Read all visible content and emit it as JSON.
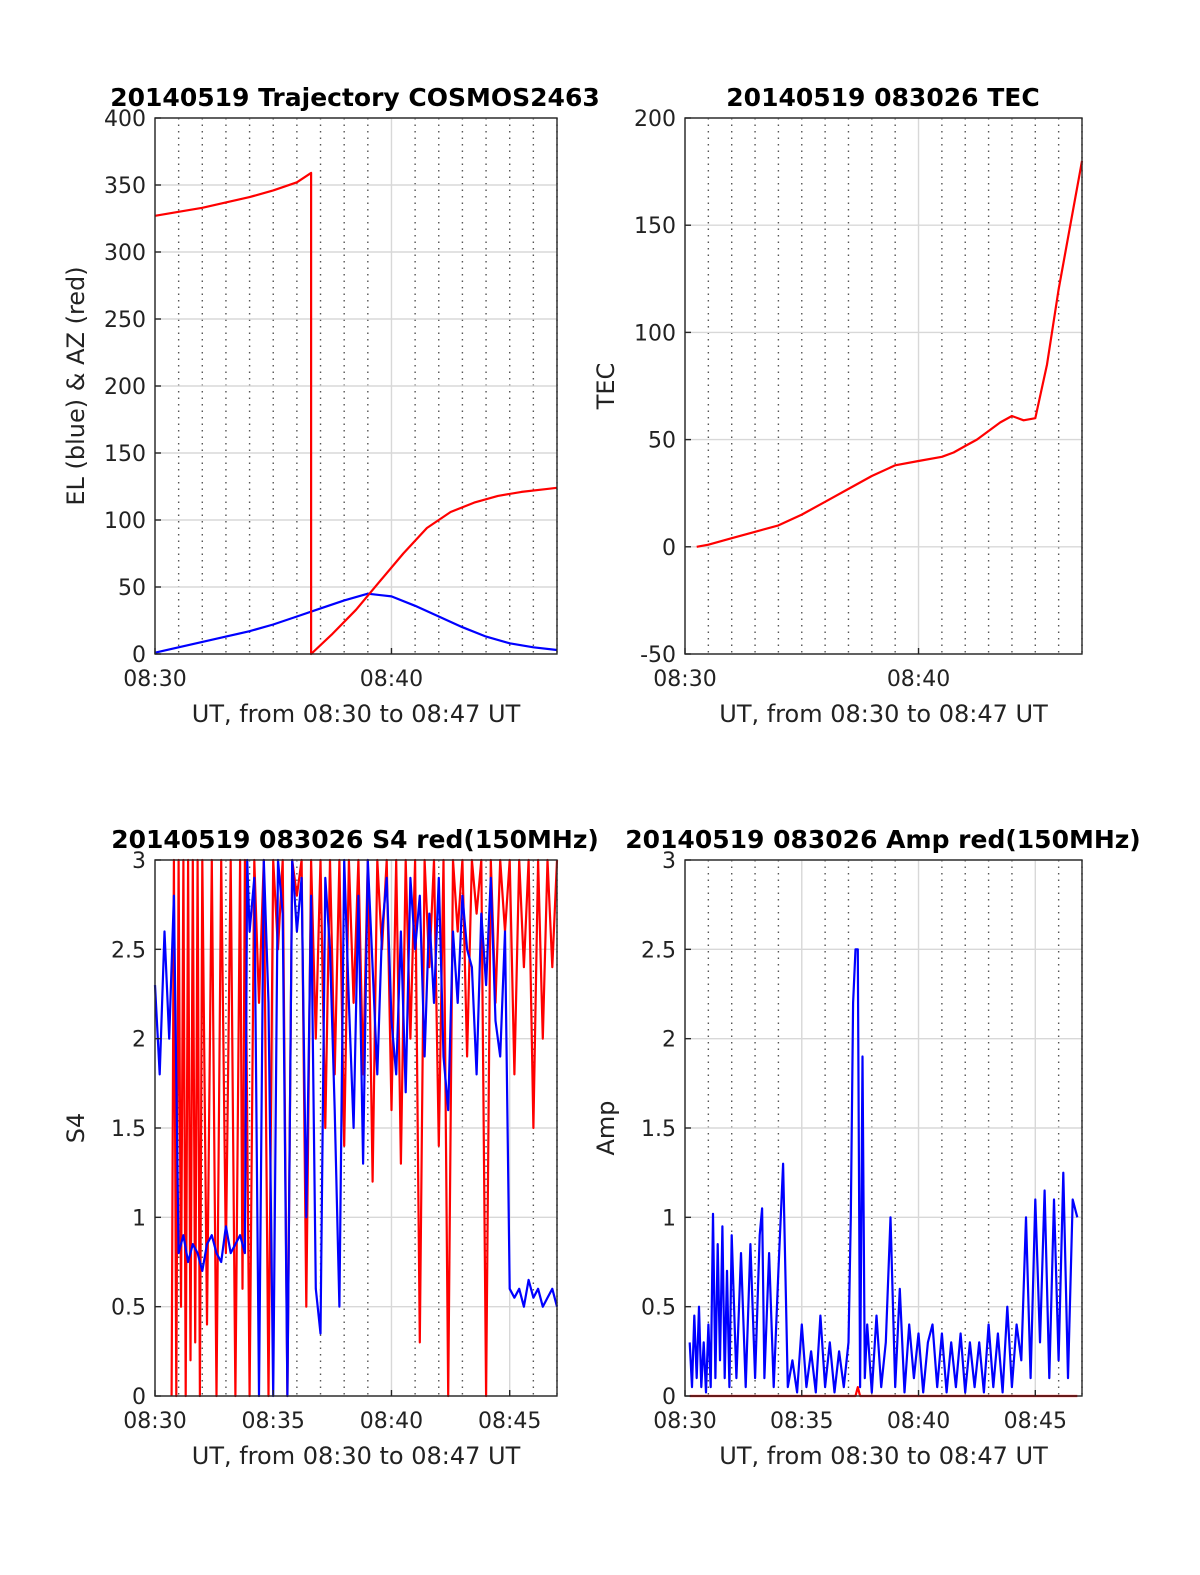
{
  "chart_data": [
    {
      "type": "line",
      "title": "20140519 Trajectory COSMOS2463",
      "xlabel": "UT, from 08:30 to 08:47 UT",
      "ylabel": "EL (blue) & AZ (red)",
      "xlim": [
        0,
        17
      ],
      "ylim": [
        0,
        400
      ],
      "xticks": [
        0,
        10
      ],
      "xtick_labels": [
        "08:30",
        "08:40"
      ],
      "yticks": [
        0,
        50,
        100,
        150,
        200,
        250,
        300,
        350,
        400
      ],
      "ytick_labels": [
        "0",
        "50",
        "100",
        "150",
        "200",
        "250",
        "300",
        "350",
        "400"
      ],
      "grid": true,
      "minor_grid_step": 1,
      "series": [
        {
          "color": "#0000ff",
          "x": [
            0,
            1,
            2,
            3,
            4,
            5,
            6,
            7,
            8,
            9,
            10,
            11,
            12,
            13,
            14,
            15,
            16,
            17
          ],
          "y": [
            1,
            5,
            9,
            13,
            17,
            22,
            28,
            34,
            40,
            45,
            43,
            36,
            28,
            20,
            13,
            8,
            5,
            3
          ]
        },
        {
          "color": "#ff0000",
          "x": [
            0,
            1,
            2,
            3,
            4,
            5,
            6,
            6.6,
            6.6,
            7.5,
            8.5,
            9.5,
            10.5,
            11.5,
            12.5,
            13.5,
            14.5,
            15.5,
            16.5,
            17
          ],
          "y": [
            327,
            330,
            333,
            337,
            341,
            346,
            352,
            359,
            0,
            15,
            33,
            54,
            75,
            94,
            106,
            113,
            118,
            121,
            123,
            124
          ]
        }
      ]
    },
    {
      "type": "line",
      "title": "20140519 083026 TEC",
      "xlabel": "UT, from 08:30 to 08:47 UT",
      "ylabel": "TEC",
      "xlim": [
        0,
        17
      ],
      "ylim": [
        -50,
        200
      ],
      "xticks": [
        0,
        10
      ],
      "xtick_labels": [
        "08:30",
        "08:40"
      ],
      "yticks": [
        -50,
        0,
        50,
        100,
        150,
        200
      ],
      "ytick_labels": [
        "-50",
        "0",
        "50",
        "100",
        "150",
        "200"
      ],
      "grid": true,
      "minor_grid_step": 1,
      "series": [
        {
          "color": "#ff0000",
          "x": [
            0.5,
            1,
            2,
            3,
            4,
            5,
            6,
            7,
            8,
            9,
            10,
            11,
            11.5,
            12,
            12.5,
            13,
            13.5,
            14,
            14.5,
            15,
            15.5,
            16,
            16.5,
            17
          ],
          "y": [
            0,
            1,
            4,
            7,
            10,
            15,
            21,
            27,
            33,
            38,
            40,
            42,
            44,
            47,
            50,
            54,
            58,
            61,
            59,
            60,
            85,
            120,
            150,
            180
          ]
        }
      ]
    },
    {
      "type": "line",
      "title": "20140519 083026 S4 red(150MHz)",
      "xlabel": "UT, from 08:30 to 08:47 UT",
      "ylabel": "S4",
      "xlim": [
        0,
        17
      ],
      "ylim": [
        0,
        3
      ],
      "xticks": [
        0,
        5,
        10,
        15
      ],
      "xtick_labels": [
        "08:30",
        "08:35",
        "08:40",
        "08:45"
      ],
      "yticks": [
        0,
        0.5,
        1,
        1.5,
        2,
        2.5,
        3
      ],
      "ytick_labels": [
        "0",
        "0.5",
        "1",
        "1.5",
        "2",
        "2.5",
        "3"
      ],
      "grid": true,
      "minor_grid_step": 1,
      "series": [
        {
          "color": "#ff0000",
          "x": [
            0.7,
            0.8,
            0.9,
            1.0,
            1.1,
            1.2,
            1.3,
            1.4,
            1.5,
            1.6,
            1.7,
            1.8,
            1.9,
            2.0,
            2.2,
            2.4,
            2.6,
            2.8,
            3.0,
            3.2,
            3.4,
            3.6,
            3.7,
            3.8,
            4.0,
            4.2,
            4.4,
            4.6,
            4.8,
            5.0,
            5.2,
            5.4,
            5.6,
            5.8,
            6.0,
            6.2,
            6.4,
            6.6,
            6.8,
            7.0,
            7.2,
            7.4,
            7.6,
            7.8,
            8.0,
            8.2,
            8.4,
            8.6,
            8.8,
            9.0,
            9.2,
            9.4,
            9.6,
            9.8,
            10.0,
            10.2,
            10.4,
            10.6,
            10.8,
            11.0,
            11.2,
            11.4,
            11.6,
            11.8,
            12.0,
            12.2,
            12.4,
            12.6,
            12.8,
            13.0,
            13.2,
            13.4,
            13.6,
            13.8,
            14.0,
            14.2,
            14.4,
            14.6,
            14.8,
            15.0,
            15.2,
            15.4,
            15.6,
            15.8,
            16.0,
            16.2,
            16.4,
            16.6,
            16.8,
            17.0
          ],
          "y": [
            0,
            3,
            0,
            3,
            0.5,
            3,
            0,
            3,
            0.2,
            3,
            0.3,
            3,
            0,
            3,
            0.4,
            3,
            0,
            3,
            0.8,
            3,
            0,
            3,
            0.6,
            3,
            0,
            3,
            2.2,
            3,
            0,
            3,
            2.5,
            3,
            0,
            3,
            2.8,
            3,
            0.5,
            3,
            2.0,
            3,
            1.5,
            3,
            1.8,
            3,
            1.4,
            3,
            2.2,
            3,
            1.8,
            3,
            1.2,
            3,
            2.5,
            3,
            1.6,
            3,
            1.3,
            3,
            2.0,
            3,
            0.3,
            3,
            2.4,
            3,
            1.4,
            3,
            0,
            3,
            2.6,
            3,
            1.9,
            3,
            2.7,
            3,
            0,
            3,
            2.2,
            3,
            2.6,
            3,
            1.8,
            3,
            2.4,
            3,
            1.5,
            3,
            2.0,
            3,
            2.4,
            3
          ]
        },
        {
          "color": "#0000ff",
          "x": [
            0,
            0.2,
            0.4,
            0.6,
            0.8,
            1.0,
            1.2,
            1.4,
            1.6,
            1.8,
            2.0,
            2.2,
            2.4,
            2.6,
            2.8,
            3.0,
            3.2,
            3.4,
            3.6,
            3.8,
            3.9,
            4.0,
            4.2,
            4.4,
            4.6,
            4.8,
            5.0,
            5.2,
            5.4,
            5.6,
            5.8,
            6.0,
            6.2,
            6.4,
            6.6,
            6.8,
            7.0,
            7.2,
            7.4,
            7.6,
            7.8,
            8.0,
            8.2,
            8.4,
            8.6,
            8.8,
            9.0,
            9.2,
            9.4,
            9.6,
            9.8,
            10.0,
            10.2,
            10.4,
            10.6,
            10.8,
            11.0,
            11.2,
            11.4,
            11.6,
            11.8,
            12.0,
            12.2,
            12.4,
            12.6,
            12.8,
            13.0,
            13.2,
            13.4,
            13.6,
            13.8,
            14.0,
            14.2,
            14.4,
            14.6,
            14.8,
            15.0,
            15.2,
            15.4,
            15.6,
            15.8,
            16.0,
            16.2,
            16.4,
            16.6,
            16.8,
            17.0
          ],
          "y": [
            2.3,
            1.8,
            2.6,
            2.0,
            2.8,
            0.8,
            0.9,
            0.75,
            0.85,
            0.8,
            0.7,
            0.85,
            0.9,
            0.8,
            0.75,
            0.95,
            0.8,
            0.85,
            0.9,
            0.8,
            3,
            2.6,
            2.9,
            0,
            3,
            2.2,
            0,
            3,
            2.7,
            0,
            3,
            2.6,
            2.9,
            1.0,
            2.8,
            0.6,
            0.35,
            2.9,
            2.5,
            1.6,
            0.5,
            3,
            2.2,
            1.5,
            2.8,
            1.3,
            3,
            2.4,
            1.8,
            2.6,
            2.9,
            2.1,
            1.8,
            2.6,
            1.7,
            2.9,
            2.5,
            2.8,
            1.9,
            2.7,
            2.2,
            2.9,
            1.9,
            1.6,
            2.6,
            2.2,
            2.8,
            2.5,
            2.4,
            1.8,
            2.7,
            2.3,
            2.9,
            2.1,
            1.9,
            2.6,
            0.6,
            0.55,
            0.6,
            0.5,
            0.65,
            0.55,
            0.6,
            0.5,
            0.55,
            0.6,
            0.5
          ]
        }
      ]
    },
    {
      "type": "line",
      "title": "20140519 083026 Amp red(150MHz)",
      "xlabel": "UT, from 08:30 to 08:47 UT",
      "ylabel": "Amp",
      "xlim": [
        0,
        17
      ],
      "ylim": [
        0,
        3
      ],
      "xticks": [
        0,
        5,
        10,
        15
      ],
      "xtick_labels": [
        "08:30",
        "08:35",
        "08:40",
        "08:45"
      ],
      "yticks": [
        0,
        0.5,
        1,
        1.5,
        2,
        2.5,
        3
      ],
      "ytick_labels": [
        "0",
        "0.5",
        "1",
        "1.5",
        "2",
        "2.5",
        "3"
      ],
      "grid": true,
      "minor_grid_step": 1,
      "series": [
        {
          "color": "#ff0000",
          "x": [
            0.2,
            7.3,
            7.4,
            7.5,
            16.8
          ],
          "y": [
            0,
            0,
            0.05,
            0,
            0
          ]
        },
        {
          "color": "#0000ff",
          "x": [
            0.2,
            0.3,
            0.4,
            0.5,
            0.6,
            0.7,
            0.8,
            0.9,
            1.0,
            1.1,
            1.2,
            1.3,
            1.4,
            1.5,
            1.6,
            1.7,
            1.8,
            1.9,
            2.0,
            2.2,
            2.4,
            2.6,
            2.8,
            3.0,
            3.2,
            3.3,
            3.4,
            3.6,
            3.8,
            4.0,
            4.2,
            4.4,
            4.6,
            4.8,
            5.0,
            5.2,
            5.4,
            5.6,
            5.8,
            6.0,
            6.2,
            6.4,
            6.6,
            6.8,
            7.0,
            7.1,
            7.2,
            7.3,
            7.4,
            7.5,
            7.6,
            7.7,
            7.8,
            8.0,
            8.2,
            8.4,
            8.6,
            8.8,
            9.0,
            9.2,
            9.4,
            9.6,
            9.8,
            10.0,
            10.2,
            10.4,
            10.6,
            10.8,
            11.0,
            11.2,
            11.4,
            11.6,
            11.8,
            12.0,
            12.2,
            12.4,
            12.6,
            12.8,
            13.0,
            13.2,
            13.4,
            13.6,
            13.8,
            14.0,
            14.2,
            14.4,
            14.6,
            14.8,
            15.0,
            15.2,
            15.4,
            15.6,
            15.8,
            16.0,
            16.2,
            16.4,
            16.6,
            16.8
          ],
          "y": [
            0.3,
            0.05,
            0.45,
            0.1,
            0.5,
            0.05,
            0.3,
            0.02,
            0.4,
            0.05,
            1.02,
            0.1,
            0.85,
            0.2,
            0.95,
            0.1,
            0.7,
            0.05,
            0.9,
            0.1,
            0.8,
            0.05,
            0.85,
            0.1,
            0.9,
            1.05,
            0.1,
            0.8,
            0.05,
            0.7,
            1.3,
            0.05,
            0.2,
            0.02,
            0.4,
            0.05,
            0.25,
            0.02,
            0.45,
            0.05,
            0.3,
            0.02,
            0.25,
            0.05,
            0.3,
            1.0,
            2.2,
            2.5,
            2.5,
            0.05,
            1.9,
            0.1,
            0.4,
            0.02,
            0.45,
            0.05,
            0.3,
            1.0,
            0.05,
            0.6,
            0.02,
            0.4,
            0.1,
            0.35,
            0.02,
            0.3,
            0.4,
            0.05,
            0.35,
            0.02,
            0.3,
            0.05,
            0.35,
            0.02,
            0.3,
            0.05,
            0.3,
            0.02,
            0.4,
            0.05,
            0.35,
            0.02,
            0.5,
            0.05,
            0.4,
            0.2,
            1.0,
            0.1,
            1.1,
            0.3,
            1.15,
            0.1,
            1.1,
            0.2,
            1.25,
            0.1,
            1.1,
            1.0
          ]
        }
      ]
    }
  ]
}
